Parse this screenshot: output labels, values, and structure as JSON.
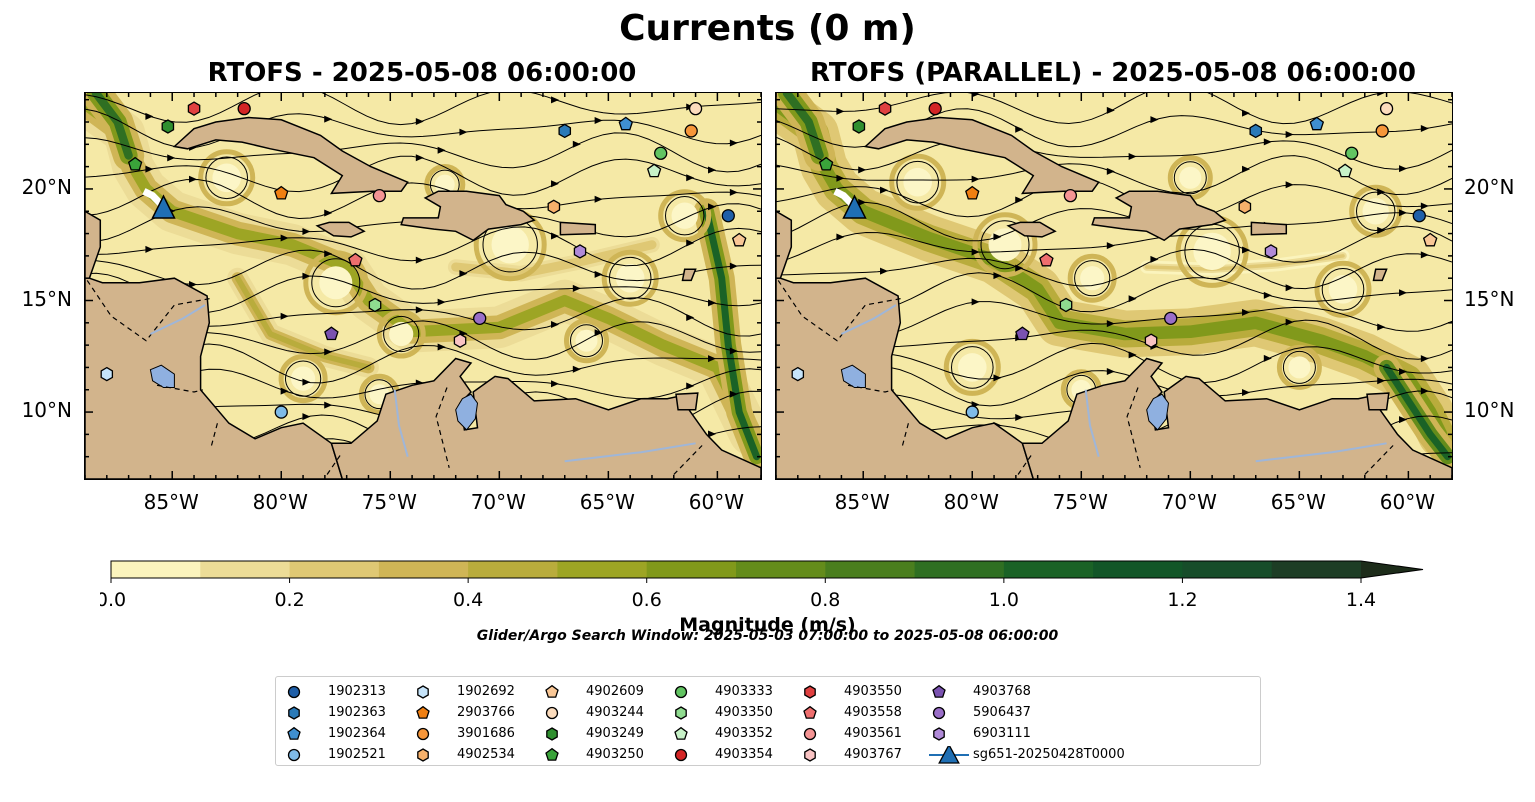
{
  "title": "Currents (0 m)",
  "panels": [
    {
      "title": "RTOFS - 2025-05-08 06:00:00"
    },
    {
      "title": "RTOFS (PARALLEL) - 2025-05-08 06:00:00"
    }
  ],
  "map_extent": {
    "lon": [
      -89,
      -58
    ],
    "lat": [
      7,
      24.3
    ]
  },
  "lon_ticks": [
    "85°W",
    "80°W",
    "75°W",
    "70°W",
    "65°W",
    "60°W"
  ],
  "lon_tick_values": [
    -85,
    -80,
    -75,
    -70,
    -65,
    -60
  ],
  "lat_ticks": [
    "20°N",
    "15°N",
    "10°N"
  ],
  "lat_tick_values": [
    20,
    15,
    10
  ],
  "colorbar": {
    "label": "Magnitude (m/s)",
    "ticks": [
      "0.0",
      "0.2",
      "0.4",
      "0.6",
      "0.8",
      "1.0",
      "1.2",
      "1.4"
    ],
    "min": 0.0,
    "max": 1.5,
    "extend": "max",
    "colors": [
      "#fbf4bd",
      "#ecdc97",
      "#dfc874",
      "#cfb556",
      "#b9ac3c",
      "#9da524",
      "#81991b",
      "#648c1b",
      "#4a7e1e",
      "#2f6f22",
      "#1a6226",
      "#125628",
      "#174d2a",
      "#1d3d25",
      "#1d2c1a"
    ]
  },
  "search_window": "Glider/Argo Search Window: 2025-05-03 07:00:00 to 2025-05-08 06:00:00",
  "land_color": "#d2b48c",
  "lake_color": "#8fb0e0",
  "floats": [
    {
      "id": "1902313",
      "marker": "circle",
      "color": "#1f5fa8",
      "lon": -59.5,
      "lat": 18.8
    },
    {
      "id": "1902363",
      "marker": "hexagon",
      "color": "#2a7ab8",
      "lon": -67.0,
      "lat": 22.6
    },
    {
      "id": "1902364",
      "marker": "pentagon",
      "color": "#3f8fd0",
      "lon": -64.2,
      "lat": 22.9
    },
    {
      "id": "1902521",
      "marker": "circle",
      "color": "#7fbbe8",
      "lon": -80.0,
      "lat": 10.0
    },
    {
      "id": "1902692",
      "marker": "hexagon",
      "color": "#c6e4fa",
      "lon": -88.0,
      "lat": 11.7
    },
    {
      "id": "2903766",
      "marker": "pentagon",
      "color": "#f07f12",
      "lon": -80.0,
      "lat": 19.8
    },
    {
      "id": "3901686",
      "marker": "circle",
      "color": "#f6963a",
      "lon": -61.2,
      "lat": 22.6
    },
    {
      "id": "4902534",
      "marker": "hexagon",
      "color": "#f7b16b",
      "lon": -67.5,
      "lat": 19.2
    },
    {
      "id": "4902609",
      "marker": "pentagon",
      "color": "#f9c796",
      "lon": -59.0,
      "lat": 17.7
    },
    {
      "id": "4903244",
      "marker": "circle",
      "color": "#fcdcbd",
      "lon": -61.0,
      "lat": 23.6
    },
    {
      "id": "4903249",
      "marker": "hexagon",
      "color": "#2f8f2f",
      "lon": -85.2,
      "lat": 22.8
    },
    {
      "id": "4903250",
      "marker": "pentagon",
      "color": "#3aa33a",
      "lon": -86.7,
      "lat": 21.1
    },
    {
      "id": "4903333",
      "marker": "circle",
      "color": "#62c462",
      "lon": -62.6,
      "lat": 21.6
    },
    {
      "id": "4903350",
      "marker": "hexagon",
      "color": "#8fdb8f",
      "lon": -75.7,
      "lat": 14.8
    },
    {
      "id": "4903352",
      "marker": "pentagon",
      "color": "#c8f2c8",
      "lon": -62.9,
      "lat": 20.8
    },
    {
      "id": "4903354",
      "marker": "circle",
      "color": "#d42525",
      "lon": -81.7,
      "lat": 23.6
    },
    {
      "id": "4903550",
      "marker": "hexagon",
      "color": "#e04040",
      "lon": -84.0,
      "lat": 23.6
    },
    {
      "id": "4903558",
      "marker": "pentagon",
      "color": "#ee6e6e",
      "lon": -76.6,
      "lat": 16.8
    },
    {
      "id": "4903561",
      "marker": "circle",
      "color": "#f49494",
      "lon": -75.5,
      "lat": 19.7
    },
    {
      "id": "4903767",
      "marker": "hexagon",
      "color": "#f9c3c3",
      "lon": -71.8,
      "lat": 13.2
    },
    {
      "id": "4903768",
      "marker": "pentagon",
      "color": "#7a52b0",
      "lon": -77.7,
      "lat": 13.5
    },
    {
      "id": "5906437",
      "marker": "circle",
      "color": "#9a6ec8",
      "lon": -70.9,
      "lat": 14.2
    },
    {
      "id": "6903111",
      "marker": "hexagon",
      "color": "#b08ad8",
      "lon": -66.3,
      "lat": 17.2
    }
  ],
  "glider": {
    "id": "sg651-20250428T0000",
    "marker": "triangle",
    "color": "#1f6fb4",
    "lon": -85.4,
    "lat": 19.1,
    "track": [
      [
        -86.3,
        19.9
      ],
      [
        -85.9,
        19.7
      ],
      [
        -85.5,
        19.3
      ]
    ]
  }
}
